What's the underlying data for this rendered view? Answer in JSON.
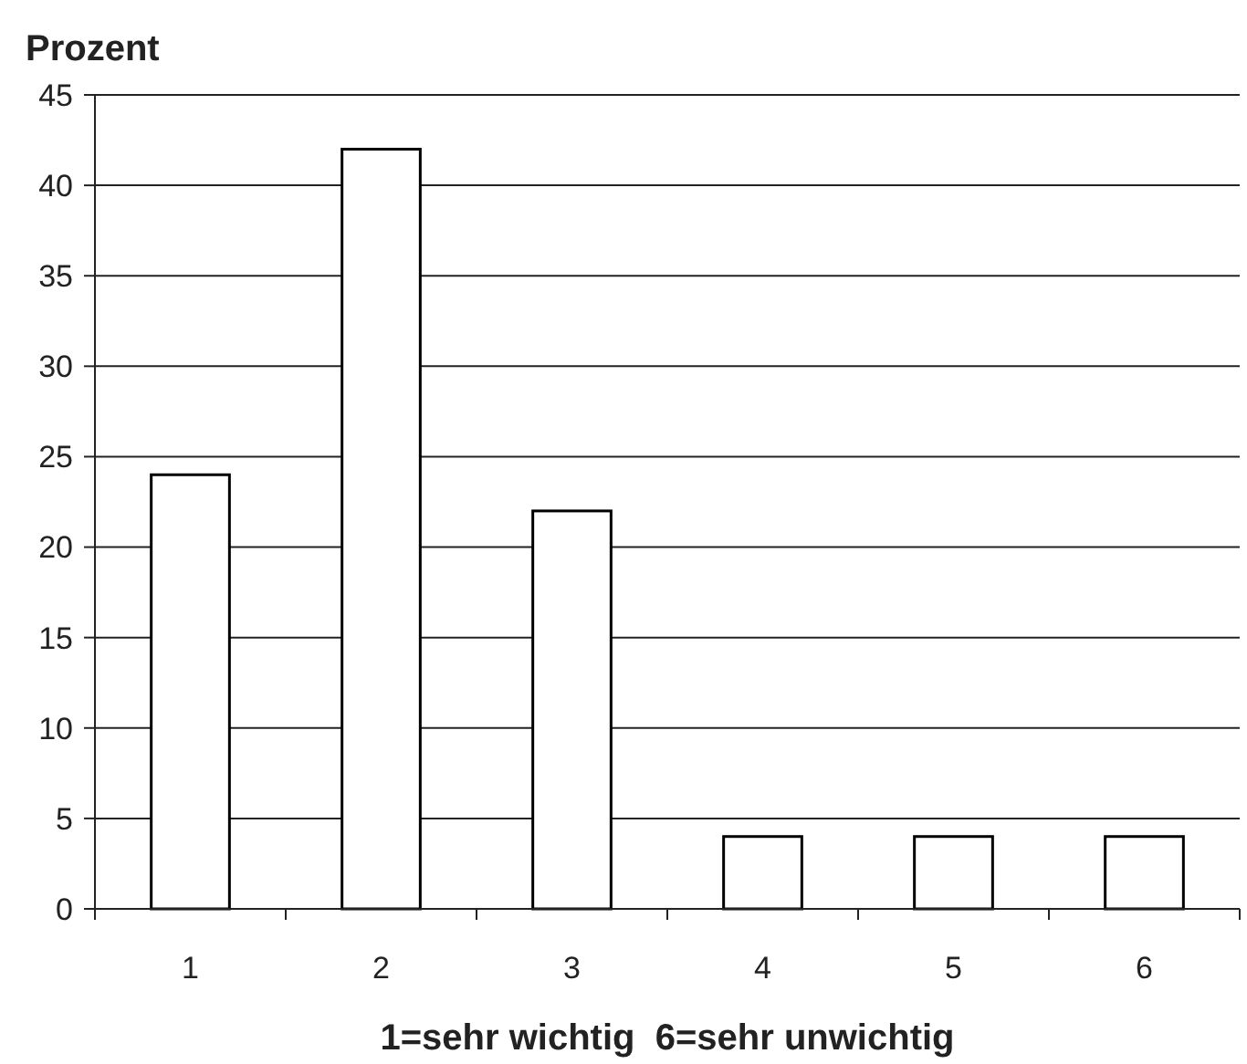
{
  "chart_data": {
    "type": "bar",
    "ylabel": "Prozent",
    "xlabel": "1=sehr wichtig  6=sehr unwichtig",
    "categories": [
      "1",
      "2",
      "3",
      "4",
      "5",
      "6"
    ],
    "values": [
      24,
      42,
      22,
      4,
      4,
      4
    ],
    "color": "#ffffff",
    "ylim": [
      0,
      45
    ],
    "yticks": [
      0,
      5,
      10,
      15,
      20,
      25,
      30,
      35,
      40,
      45
    ],
    "grid": "y"
  }
}
